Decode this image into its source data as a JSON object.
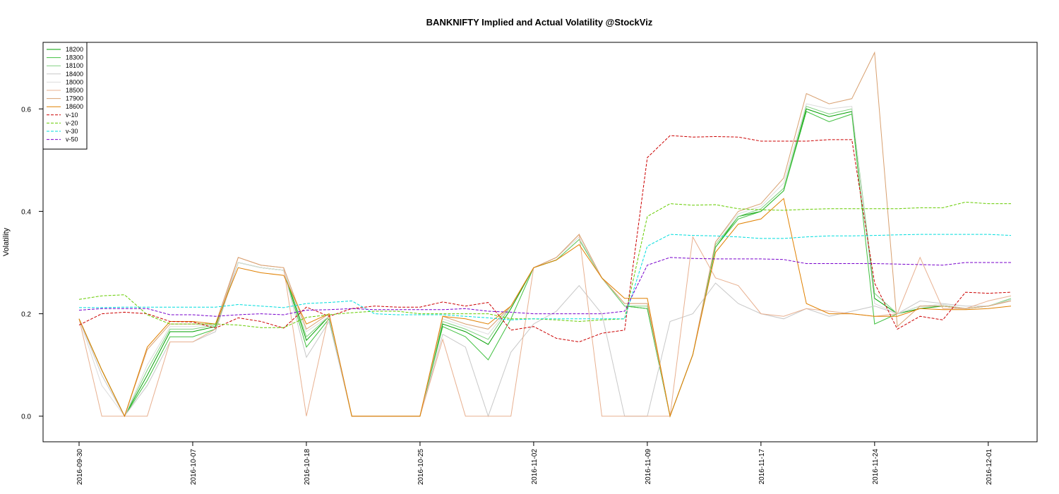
{
  "chart_data": {
    "type": "line",
    "title": "BANKNIFTY Implied and Actual Volatility @StockViz",
    "xlabel": "",
    "ylabel": "Volatility",
    "ylim": [
      -0.05,
      0.73
    ],
    "yticks": [
      0.0,
      0.2,
      0.4,
      0.6
    ],
    "ytick_labels": [
      "0.0",
      "0.2",
      "0.4",
      "0.6"
    ],
    "grid": false,
    "legend_position": "top-left",
    "x_tick_labels": [
      "2016-09-30",
      "2016-10-07",
      "2016-10-18",
      "2016-10-25",
      "2016-11-02",
      "2016-11-09",
      "2016-11-17",
      "2016-11-24",
      "2016-12-01"
    ],
    "x_tick_index": [
      0,
      5,
      10,
      15,
      20,
      25,
      30,
      35,
      40
    ],
    "x": [
      "2016-09-30",
      "2016-10-03",
      "2016-10-04",
      "2016-10-05",
      "2016-10-06",
      "2016-10-07",
      "2016-10-10",
      "2016-10-13",
      "2016-10-14",
      "2016-10-17",
      "2016-10-18",
      "2016-10-19",
      "2016-10-20",
      "2016-10-21",
      "2016-10-24",
      "2016-10-25",
      "2016-10-26",
      "2016-10-27",
      "2016-10-28",
      "2016-11-01",
      "2016-11-02",
      "2016-11-03",
      "2016-11-04",
      "2016-11-07",
      "2016-11-08",
      "2016-11-09",
      "2016-11-10",
      "2016-11-11",
      "2016-11-15",
      "2016-11-16",
      "2016-11-17",
      "2016-11-18",
      "2016-11-21",
      "2016-11-22",
      "2016-11-23",
      "2016-11-24",
      "2016-11-25",
      "2016-11-28",
      "2016-11-29",
      "2016-11-30",
      "2016-12-01",
      "2016-12-02"
    ],
    "series": [
      {
        "name": "18200",
        "color": "#00a000",
        "dash": "",
        "values": [
          0.19,
          0.09,
          0.0,
          0.08,
          0.165,
          0.165,
          0.175,
          0.3,
          0.29,
          0.285,
          0.148,
          0.195,
          0.0,
          0.0,
          0.0,
          0.0,
          0.18,
          0.165,
          0.14,
          0.21,
          0.29,
          0.305,
          0.345,
          0.27,
          0.215,
          0.21,
          0.0,
          0.12,
          0.33,
          0.39,
          0.4,
          0.44,
          0.6,
          0.585,
          0.595,
          0.23,
          0.2,
          0.21,
          0.215,
          0.21,
          0.215,
          0.228
        ]
      },
      {
        "name": "18300",
        "color": "#40c040",
        "dash": "",
        "values": [
          0.19,
          0.09,
          0.0,
          0.07,
          0.155,
          0.155,
          0.17,
          0.3,
          0.29,
          0.285,
          0.135,
          0.19,
          0.0,
          0.0,
          0.0,
          0.0,
          0.175,
          0.155,
          0.11,
          0.19,
          0.29,
          0.305,
          0.345,
          0.27,
          0.215,
          0.21,
          0.0,
          0.12,
          0.33,
          0.385,
          0.4,
          0.44,
          0.595,
          0.575,
          0.59,
          0.18,
          0.2,
          0.215,
          0.215,
          0.21,
          0.215,
          0.228
        ]
      },
      {
        "name": "18100",
        "color": "#80d080",
        "dash": "",
        "values": [
          0.19,
          0.09,
          0.0,
          0.09,
          0.17,
          0.17,
          0.178,
          0.3,
          0.29,
          0.285,
          0.155,
          0.195,
          0.0,
          0.0,
          0.0,
          0.0,
          0.185,
          0.17,
          0.15,
          0.215,
          0.29,
          0.305,
          0.345,
          0.27,
          0.215,
          0.215,
          0.0,
          0.12,
          0.335,
          0.39,
          0.405,
          0.445,
          0.605,
          0.59,
          0.6,
          0.24,
          0.2,
          0.215,
          0.218,
          0.21,
          0.215,
          0.23
        ]
      },
      {
        "name": "18400",
        "color": "#c8c8c8",
        "dash": "",
        "values": [
          0.19,
          0.08,
          0.0,
          0.06,
          0.145,
          0.145,
          0.165,
          0.3,
          0.29,
          0.285,
          0.115,
          0.185,
          0.0,
          0.0,
          0.0,
          0.0,
          0.16,
          0.135,
          0.0,
          0.125,
          0.18,
          0.205,
          0.255,
          0.2,
          0.0,
          0.0,
          0.185,
          0.2,
          0.26,
          0.22,
          0.2,
          0.19,
          0.21,
          0.195,
          0.205,
          0.215,
          0.2,
          0.225,
          0.22,
          0.215,
          0.215,
          0.225
        ]
      },
      {
        "name": "18000",
        "color": "#dcdcdc",
        "dash": "",
        "values": [
          0.19,
          0.06,
          0.0,
          0.1,
          0.175,
          0.175,
          0.18,
          0.3,
          0.29,
          0.285,
          0.165,
          0.195,
          0.0,
          0.0,
          0.0,
          0.0,
          0.19,
          0.175,
          0.16,
          0.215,
          0.29,
          0.31,
          0.35,
          0.27,
          0.22,
          0.22,
          0.0,
          0.12,
          0.34,
          0.395,
          0.41,
          0.455,
          0.61,
          0.6,
          0.605,
          0.22,
          0.2,
          0.215,
          0.218,
          0.21,
          0.215,
          0.228
        ]
      },
      {
        "name": "18500",
        "color": "#e8b090",
        "dash": "",
        "values": [
          0.19,
          0.0,
          0.0,
          0.0,
          0.145,
          0.145,
          0.17,
          0.31,
          0.295,
          0.29,
          0.0,
          0.2,
          0.0,
          0.0,
          0.0,
          0.0,
          0.15,
          0.0,
          0.0,
          0.0,
          0.29,
          0.31,
          0.355,
          0.0,
          0.0,
          0.0,
          0.0,
          0.35,
          0.27,
          0.255,
          0.2,
          0.195,
          0.21,
          0.205,
          0.2,
          0.195,
          0.2,
          0.31,
          0.21,
          0.21,
          0.225,
          0.235
        ]
      },
      {
        "name": "17900",
        "color": "#d8a070",
        "dash": "",
        "values": [
          0.19,
          0.09,
          0.0,
          0.13,
          0.18,
          0.18,
          0.18,
          0.31,
          0.295,
          0.29,
          0.17,
          0.2,
          0.0,
          0.0,
          0.0,
          0.0,
          0.195,
          0.18,
          0.17,
          0.215,
          0.29,
          0.31,
          0.355,
          0.27,
          0.22,
          0.22,
          0.0,
          0.12,
          0.34,
          0.4,
          0.415,
          0.465,
          0.63,
          0.61,
          0.62,
          0.71,
          0.175,
          0.215,
          0.215,
          0.21,
          0.215,
          0.225
        ]
      },
      {
        "name": "18600",
        "color": "#e08000",
        "dash": "",
        "values": [
          0.19,
          0.09,
          0.0,
          0.135,
          0.185,
          0.185,
          0.18,
          0.29,
          0.28,
          0.275,
          0.18,
          0.2,
          0.0,
          0.0,
          0.0,
          0.0,
          0.195,
          0.19,
          0.18,
          0.215,
          0.29,
          0.305,
          0.335,
          0.27,
          0.23,
          0.23,
          0.0,
          0.12,
          0.32,
          0.375,
          0.385,
          0.425,
          0.22,
          0.2,
          0.2,
          0.195,
          0.195,
          0.21,
          0.208,
          0.208,
          0.21,
          0.215
        ]
      },
      {
        "name": "v-10",
        "color": "#cc0000",
        "dash": "4,2",
        "values": [
          0.178,
          0.2,
          0.203,
          0.2,
          0.185,
          0.184,
          0.172,
          0.192,
          0.185,
          0.172,
          0.213,
          0.195,
          0.21,
          0.215,
          0.213,
          0.213,
          0.223,
          0.215,
          0.222,
          0.168,
          0.175,
          0.152,
          0.145,
          0.162,
          0.168,
          0.505,
          0.548,
          0.545,
          0.546,
          0.545,
          0.537,
          0.537,
          0.537,
          0.54,
          0.54,
          0.26,
          0.17,
          0.195,
          0.188,
          0.242,
          0.24,
          0.242
        ]
      },
      {
        "name": "v-20",
        "color": "#66cc00",
        "dash": "4,2",
        "values": [
          0.228,
          0.235,
          0.237,
          0.198,
          0.18,
          0.18,
          0.18,
          0.178,
          0.173,
          0.173,
          0.193,
          0.198,
          0.202,
          0.205,
          0.205,
          0.2,
          0.2,
          0.2,
          0.2,
          0.19,
          0.19,
          0.188,
          0.185,
          0.188,
          0.19,
          0.39,
          0.415,
          0.412,
          0.413,
          0.405,
          0.403,
          0.402,
          0.404,
          0.405,
          0.405,
          0.405,
          0.405,
          0.407,
          0.407,
          0.418,
          0.415,
          0.415
        ]
      },
      {
        "name": "v-30",
        "color": "#00dddd",
        "dash": "4,2",
        "values": [
          0.212,
          0.212,
          0.213,
          0.213,
          0.213,
          0.213,
          0.213,
          0.218,
          0.215,
          0.212,
          0.22,
          0.222,
          0.225,
          0.2,
          0.198,
          0.198,
          0.198,
          0.195,
          0.192,
          0.188,
          0.19,
          0.19,
          0.19,
          0.19,
          0.19,
          0.332,
          0.355,
          0.353,
          0.352,
          0.35,
          0.347,
          0.347,
          0.35,
          0.352,
          0.352,
          0.353,
          0.354,
          0.355,
          0.355,
          0.355,
          0.355,
          0.353
        ]
      },
      {
        "name": "v-50",
        "color": "#7700cc",
        "dash": "4,2",
        "values": [
          0.207,
          0.21,
          0.21,
          0.21,
          0.198,
          0.198,
          0.195,
          0.198,
          0.2,
          0.198,
          0.207,
          0.208,
          0.21,
          0.208,
          0.208,
          0.208,
          0.208,
          0.21,
          0.205,
          0.203,
          0.2,
          0.2,
          0.2,
          0.2,
          0.205,
          0.295,
          0.31,
          0.308,
          0.307,
          0.307,
          0.307,
          0.306,
          0.298,
          0.298,
          0.298,
          0.298,
          0.297,
          0.296,
          0.295,
          0.3,
          0.3,
          0.3
        ]
      }
    ]
  }
}
